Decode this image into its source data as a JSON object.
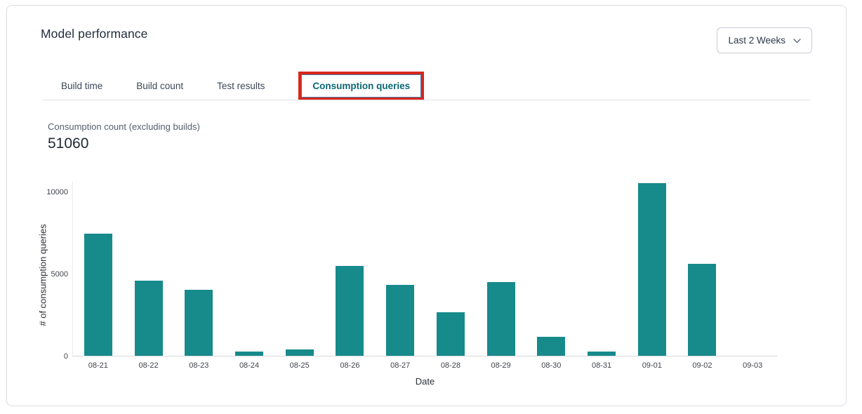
{
  "header": {
    "title": "Model performance",
    "period_selector": {
      "value": "Last 2 Weeks"
    }
  },
  "tabs": [
    {
      "label": "Build time",
      "active": false,
      "annotated": false
    },
    {
      "label": "Build count",
      "active": false,
      "annotated": false
    },
    {
      "label": "Test results",
      "active": false,
      "annotated": false
    },
    {
      "label": "Consumption queries",
      "active": true,
      "annotated": true
    }
  ],
  "metric": {
    "label": "Consumption count (excluding builds)",
    "value": "51060"
  },
  "chart_data": {
    "type": "bar",
    "title": "",
    "xlabel": "Date",
    "ylabel": "# of consumption queries",
    "categories": [
      "08-21",
      "08-22",
      "08-23",
      "08-24",
      "08-25",
      "08-26",
      "08-27",
      "08-28",
      "08-29",
      "08-30",
      "08-31",
      "09-01",
      "09-02",
      "09-03"
    ],
    "values": [
      7420,
      4570,
      4020,
      270,
      390,
      5450,
      4300,
      2660,
      4480,
      1160,
      250,
      10510,
      5580,
      0
    ],
    "yticks": [
      0,
      5000,
      10000
    ],
    "ylim": [
      0,
      10700
    ],
    "grid": false,
    "legend": "none",
    "bar_color": "#178a8c"
  },
  "colors": {
    "bar": "#178a8c",
    "active_tab": "#0c6872",
    "annotation_red": "#d6271c"
  },
  "icons": {
    "chevron_down": "chevron-down-icon"
  }
}
